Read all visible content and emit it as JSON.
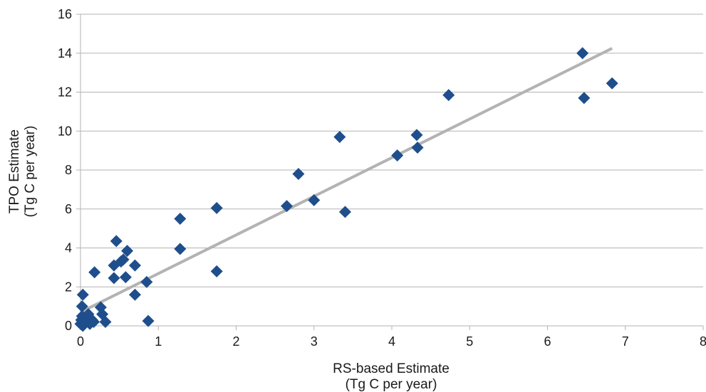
{
  "chart_data": {
    "type": "scatter",
    "xlabel_line1": "RS-based Estimate",
    "xlabel_line2": "(Tg C per year)",
    "ylabel_line1": "TPO Estimate",
    "ylabel_line2": "(Tg C per year)",
    "xlim": [
      0,
      8
    ],
    "ylim": [
      0,
      16
    ],
    "x_ticks": [
      0,
      1,
      2,
      3,
      4,
      5,
      6,
      7,
      8
    ],
    "y_ticks": [
      0,
      2,
      4,
      6,
      8,
      10,
      12,
      14,
      16
    ],
    "grid": "horizontal",
    "marker": "diamond",
    "marker_color": "#1f4e8c",
    "trendline_color": "#b3b3b3",
    "trendline": {
      "x": [
        0.0,
        6.83
      ],
      "y": [
        0.7,
        14.25
      ]
    },
    "series": [
      {
        "points": [
          [
            0.0,
            0.1
          ],
          [
            0.01,
            0.3
          ],
          [
            0.02,
            0.5
          ],
          [
            0.03,
            0.0
          ],
          [
            0.04,
            0.2
          ],
          [
            0.05,
            0.4
          ],
          [
            0.06,
            0.15
          ],
          [
            0.08,
            0.35
          ],
          [
            0.1,
            0.6
          ],
          [
            0.12,
            0.1
          ],
          [
            0.15,
            0.3
          ],
          [
            0.17,
            0.2
          ],
          [
            0.02,
            1.0
          ],
          [
            0.03,
            1.6
          ],
          [
            0.26,
            0.95
          ],
          [
            0.28,
            0.6
          ],
          [
            0.32,
            0.2
          ],
          [
            0.18,
            2.75
          ],
          [
            0.43,
            2.45
          ],
          [
            0.43,
            3.1
          ],
          [
            0.46,
            4.35
          ],
          [
            0.52,
            3.3
          ],
          [
            0.55,
            3.4
          ],
          [
            0.58,
            2.5
          ],
          [
            0.6,
            3.85
          ],
          [
            0.7,
            3.1
          ],
          [
            0.7,
            1.6
          ],
          [
            0.85,
            2.25
          ],
          [
            0.87,
            0.25
          ],
          [
            1.28,
            5.5
          ],
          [
            1.28,
            3.95
          ],
          [
            1.75,
            6.05
          ],
          [
            1.75,
            2.8
          ],
          [
            2.65,
            6.15
          ],
          [
            2.8,
            7.8
          ],
          [
            3.0,
            6.45
          ],
          [
            3.33,
            9.7
          ],
          [
            3.4,
            5.85
          ],
          [
            4.07,
            8.75
          ],
          [
            4.32,
            9.8
          ],
          [
            4.33,
            9.15
          ],
          [
            4.73,
            11.85
          ],
          [
            6.45,
            14.0
          ],
          [
            6.47,
            11.7
          ],
          [
            6.83,
            12.45
          ]
        ]
      }
    ]
  }
}
